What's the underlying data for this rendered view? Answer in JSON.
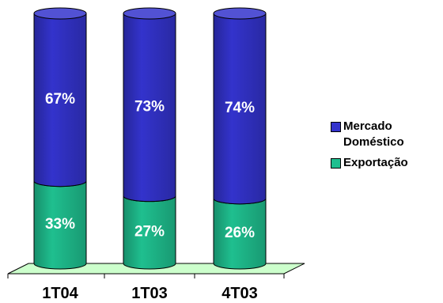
{
  "chart_data": {
    "type": "bar",
    "stacked": true,
    "percent": true,
    "categories": [
      "1T04",
      "1T03",
      "4T03"
    ],
    "series": [
      {
        "name": "Exportação",
        "values": [
          33,
          27,
          26
        ],
        "labels": [
          "33%",
          "27%",
          "26%"
        ],
        "color": "#1fbf8f"
      },
      {
        "name": "Mercado Doméstico",
        "values": [
          67,
          73,
          74
        ],
        "labels": [
          "67%",
          "73%",
          "74%"
        ],
        "color": "#3333cc"
      }
    ],
    "ylim": [
      0,
      100
    ],
    "grid": false,
    "legend_position": "right"
  },
  "legend": {
    "items": [
      {
        "label": "Mercado\nDoméstico",
        "color": "#3333cc"
      },
      {
        "label": "Exportação",
        "color": "#1fbf8f"
      }
    ]
  },
  "colors": {
    "floor": "#ccffcc",
    "outline": "#000000",
    "label_text": "#ffffff"
  }
}
